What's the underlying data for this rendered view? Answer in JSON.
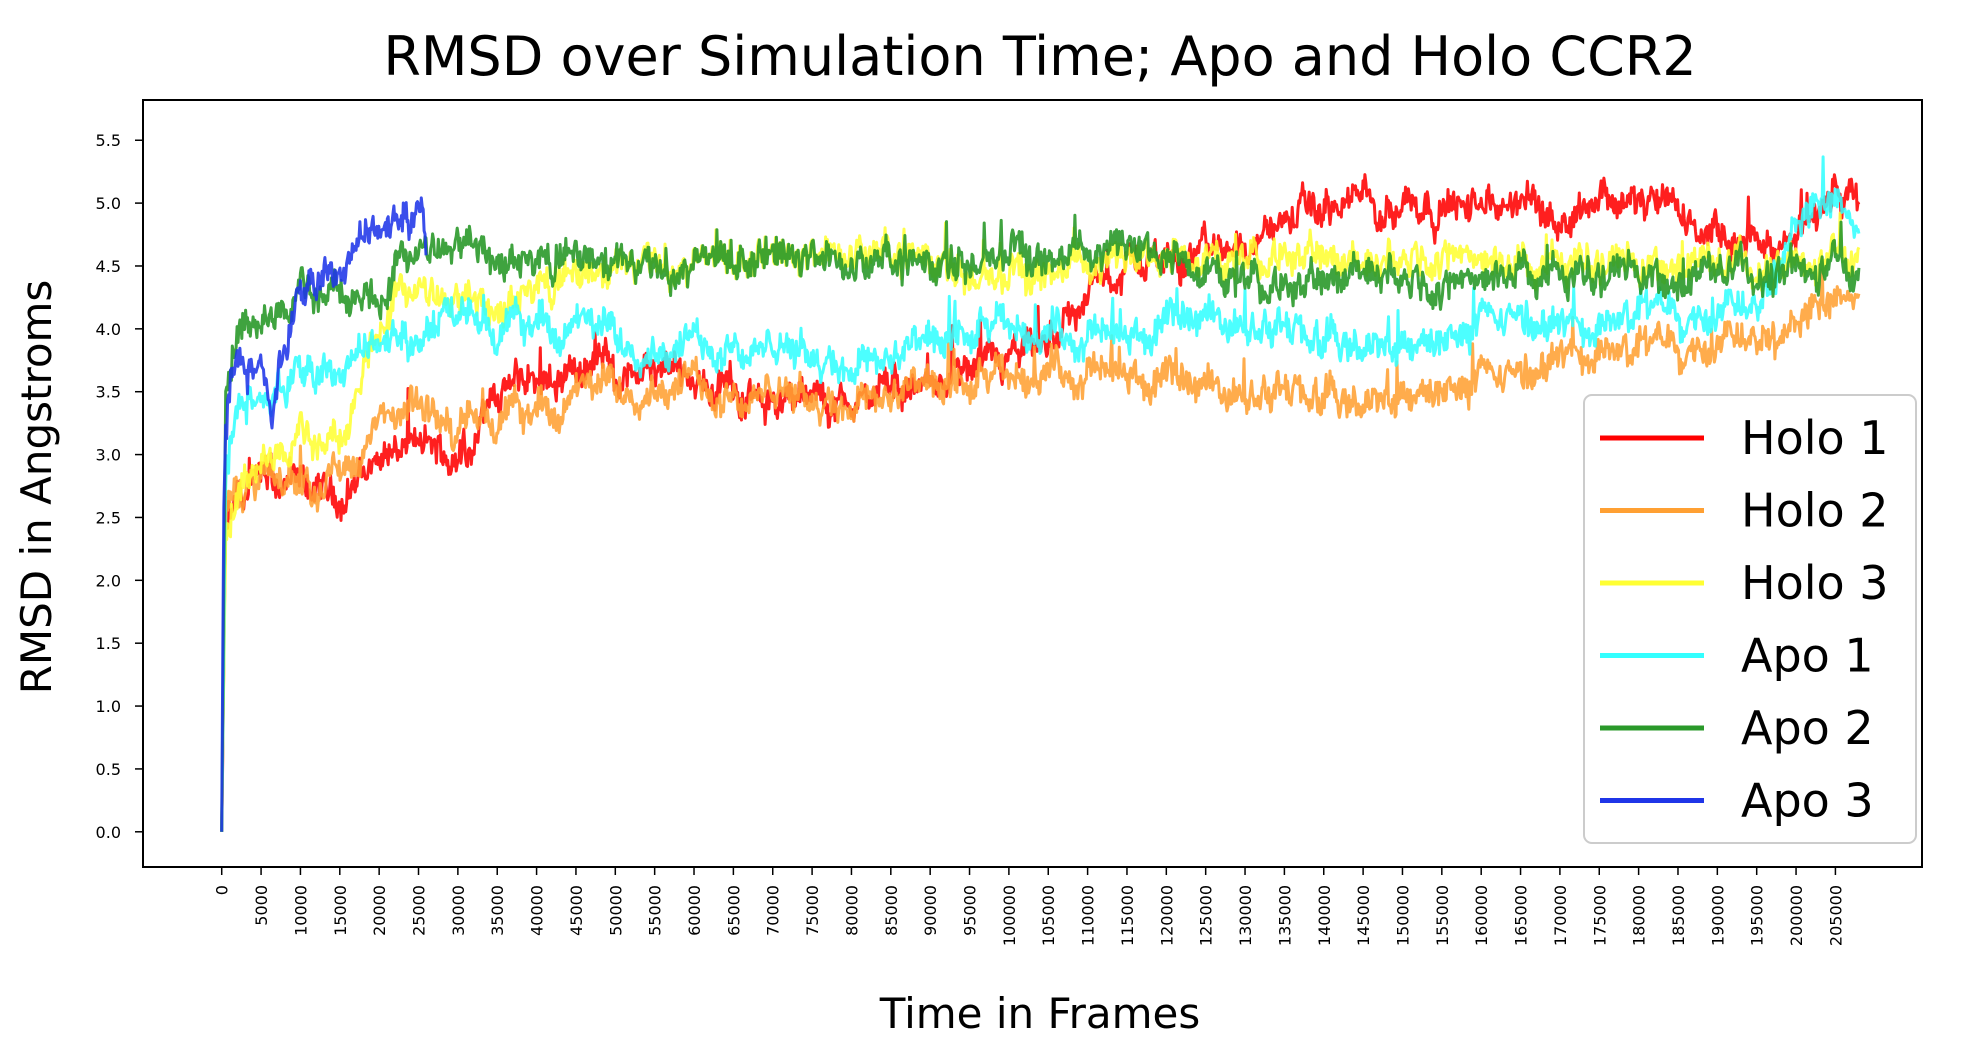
{
  "chart_data": {
    "type": "line",
    "title": "RMSD over Simulation Time; Apo and Holo CCR2",
    "xlabel": "Time in Frames",
    "ylabel": "RMSD in Angstroms",
    "xlim": [
      -10000,
      216000
    ],
    "ylim": [
      -0.28,
      5.82
    ],
    "xticks": [
      0,
      5000,
      10000,
      15000,
      20000,
      25000,
      30000,
      35000,
      40000,
      45000,
      50000,
      55000,
      60000,
      65000,
      70000,
      75000,
      80000,
      85000,
      90000,
      95000,
      100000,
      105000,
      110000,
      115000,
      120000,
      125000,
      130000,
      135000,
      140000,
      145000,
      150000,
      155000,
      160000,
      165000,
      170000,
      175000,
      180000,
      185000,
      190000,
      195000,
      200000,
      205000
    ],
    "yticks": [
      0.0,
      0.5,
      1.0,
      1.5,
      2.0,
      2.5,
      3.0,
      3.5,
      4.0,
      4.5,
      5.0,
      5.5
    ],
    "ytick_labels": [
      "0.0",
      "0.5",
      "1.0",
      "1.5",
      "2.0",
      "2.5",
      "3.0",
      "3.5",
      "4.0",
      "4.5",
      "5.0",
      "5.5"
    ],
    "legend_position": "lower-right",
    "grid": false,
    "series": [
      {
        "name": "Holo 1",
        "color": "#ff0000",
        "x": [
          0,
          500,
          2000,
          5000,
          10000,
          15000,
          20000,
          25000,
          30000,
          35000,
          40000,
          45000,
          50000,
          55000,
          60000,
          65000,
          70000,
          75000,
          80000,
          85000,
          90000,
          95000,
          100000,
          105000,
          110000,
          115000,
          120000,
          125000,
          130000,
          135000,
          140000,
          145000,
          150000,
          155000,
          160000,
          165000,
          170000,
          175000,
          180000,
          185000,
          190000,
          195000,
          200000,
          205000,
          208000
        ],
        "y": [
          0.0,
          2.4,
          2.6,
          2.7,
          2.7,
          2.65,
          3.0,
          3.05,
          2.95,
          3.5,
          3.6,
          3.7,
          3.75,
          3.6,
          3.55,
          3.5,
          3.45,
          3.4,
          3.4,
          3.5,
          3.55,
          3.6,
          3.7,
          3.85,
          4.3,
          4.5,
          4.6,
          4.6,
          4.7,
          4.85,
          4.95,
          5.0,
          5.05,
          5.0,
          4.95,
          5.0,
          4.9,
          5.1,
          5.0,
          4.9,
          4.7,
          4.6,
          4.8,
          5.1,
          5.05
        ]
      },
      {
        "name": "Holo 2",
        "color": "#ffa033",
        "x": [
          0,
          500,
          2000,
          5000,
          10000,
          15000,
          20000,
          25000,
          30000,
          35000,
          40000,
          45000,
          50000,
          55000,
          60000,
          65000,
          70000,
          75000,
          80000,
          85000,
          90000,
          95000,
          100000,
          105000,
          110000,
          115000,
          120000,
          125000,
          130000,
          135000,
          140000,
          145000,
          150000,
          155000,
          160000,
          165000,
          170000,
          175000,
          180000,
          185000,
          190000,
          195000,
          200000,
          205000,
          208000
        ],
        "y": [
          0.0,
          2.5,
          2.7,
          2.8,
          2.8,
          2.85,
          3.2,
          3.35,
          3.25,
          3.3,
          3.35,
          3.45,
          3.55,
          3.6,
          3.55,
          3.5,
          3.45,
          3.45,
          3.45,
          3.5,
          3.5,
          3.5,
          3.6,
          3.7,
          3.65,
          3.6,
          3.55,
          3.55,
          3.5,
          3.45,
          3.4,
          3.35,
          3.45,
          3.5,
          3.55,
          3.6,
          3.75,
          3.85,
          3.8,
          3.9,
          3.95,
          4.05,
          4.1,
          4.2,
          4.35
        ]
      },
      {
        "name": "Holo 3",
        "color": "#ffff33",
        "x": [
          0,
          500,
          2000,
          5000,
          10000,
          15000,
          20000,
          25000,
          30000,
          35000,
          40000,
          45000,
          50000,
          55000,
          60000,
          65000,
          70000,
          75000,
          80000,
          85000,
          90000,
          95000,
          100000,
          105000,
          110000,
          115000,
          120000,
          125000,
          130000,
          135000,
          140000,
          145000,
          150000,
          155000,
          160000,
          165000,
          170000,
          175000,
          180000,
          185000,
          190000,
          195000,
          200000,
          205000,
          208000
        ],
        "y": [
          0.0,
          2.3,
          2.6,
          2.9,
          3.1,
          3.15,
          4.1,
          4.3,
          4.25,
          4.2,
          4.3,
          4.4,
          4.45,
          4.5,
          4.55,
          4.6,
          4.55,
          4.6,
          4.6,
          4.55,
          4.5,
          4.45,
          4.4,
          4.45,
          4.5,
          4.5,
          4.55,
          4.6,
          4.6,
          4.65,
          4.55,
          4.55,
          4.6,
          4.65,
          4.6,
          4.55,
          4.55,
          4.5,
          4.5,
          4.55,
          4.5,
          4.45,
          4.5,
          4.55,
          4.6
        ]
      },
      {
        "name": "Apo 1",
        "color": "#33ffff",
        "x": [
          0,
          500,
          2000,
          5000,
          10000,
          15000,
          20000,
          25000,
          30000,
          35000,
          40000,
          45000,
          50000,
          55000,
          60000,
          65000,
          70000,
          75000,
          80000,
          85000,
          90000,
          95000,
          100000,
          105000,
          110000,
          115000,
          120000,
          125000,
          130000,
          135000,
          140000,
          145000,
          150000,
          155000,
          160000,
          165000,
          170000,
          175000,
          180000,
          185000,
          190000,
          195000,
          200000,
          205000,
          208000
        ],
        "y": [
          0.0,
          2.8,
          3.3,
          3.5,
          3.6,
          3.75,
          3.9,
          4.0,
          4.05,
          4.0,
          4.05,
          4.0,
          3.95,
          3.9,
          3.85,
          3.9,
          3.8,
          3.8,
          3.75,
          3.8,
          3.85,
          3.9,
          4.0,
          4.0,
          3.95,
          3.9,
          4.0,
          4.1,
          4.05,
          3.95,
          3.85,
          3.8,
          3.85,
          3.9,
          4.0,
          4.05,
          4.0,
          4.05,
          4.1,
          4.15,
          4.2,
          4.3,
          4.9,
          5.0,
          4.85
        ]
      },
      {
        "name": "Apo 2",
        "color": "#2a992a",
        "x": [
          0,
          500,
          2000,
          5000,
          10000,
          15000,
          20000,
          25000,
          30000,
          35000,
          40000,
          45000,
          50000,
          55000,
          60000,
          65000,
          70000,
          75000,
          80000,
          85000,
          90000,
          95000,
          100000,
          105000,
          110000,
          115000,
          120000,
          125000,
          130000,
          135000,
          140000,
          145000,
          150000,
          155000,
          160000,
          165000,
          170000,
          175000,
          180000,
          185000,
          190000,
          195000,
          200000,
          205000,
          208000
        ],
        "y": [
          0.0,
          3.4,
          3.9,
          4.0,
          4.25,
          4.35,
          4.3,
          4.6,
          4.7,
          4.6,
          4.5,
          4.55,
          4.5,
          4.45,
          4.55,
          4.6,
          4.55,
          4.6,
          4.5,
          4.5,
          4.45,
          4.55,
          4.6,
          4.55,
          4.6,
          4.6,
          4.55,
          4.5,
          4.45,
          4.4,
          4.35,
          4.5,
          4.45,
          4.4,
          4.45,
          4.5,
          4.45,
          4.4,
          4.45,
          4.4,
          4.45,
          4.4,
          4.45,
          4.5,
          4.45
        ]
      },
      {
        "name": "Apo 3",
        "color": "#1f35e8",
        "x": [
          0,
          300,
          1000,
          2000,
          3500,
          5000,
          6500,
          8000,
          10000,
          12000,
          14000,
          16000,
          18000,
          20000,
          22000,
          24000,
          25500,
          26000
        ],
        "y": [
          0.0,
          2.9,
          3.5,
          3.7,
          3.6,
          3.8,
          3.4,
          3.9,
          4.2,
          4.4,
          4.5,
          4.6,
          4.75,
          4.8,
          4.85,
          4.95,
          5.15,
          4.6
        ]
      }
    ]
  }
}
